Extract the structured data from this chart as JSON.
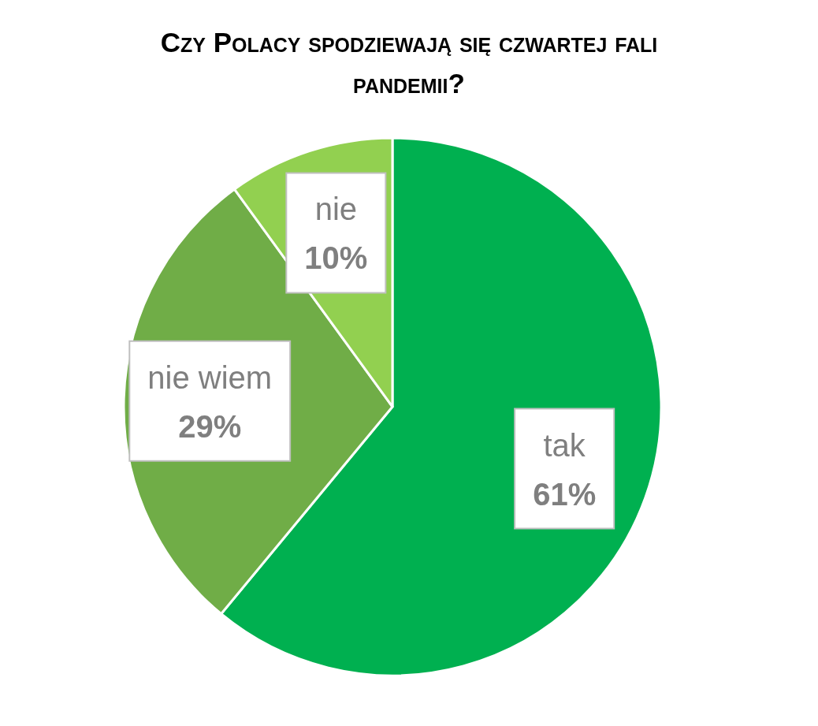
{
  "chart_data": {
    "type": "pie",
    "title": "Czy Polacy spodziewają się czwartej fali pandemii?",
    "categories": [
      "tak",
      "nie wiem",
      "nie"
    ],
    "values": [
      61,
      29,
      10
    ],
    "value_labels": [
      "61%",
      "29%",
      "10%"
    ],
    "colors": [
      "#00b050",
      "#70ad47",
      "#92d050"
    ],
    "legend": false
  }
}
